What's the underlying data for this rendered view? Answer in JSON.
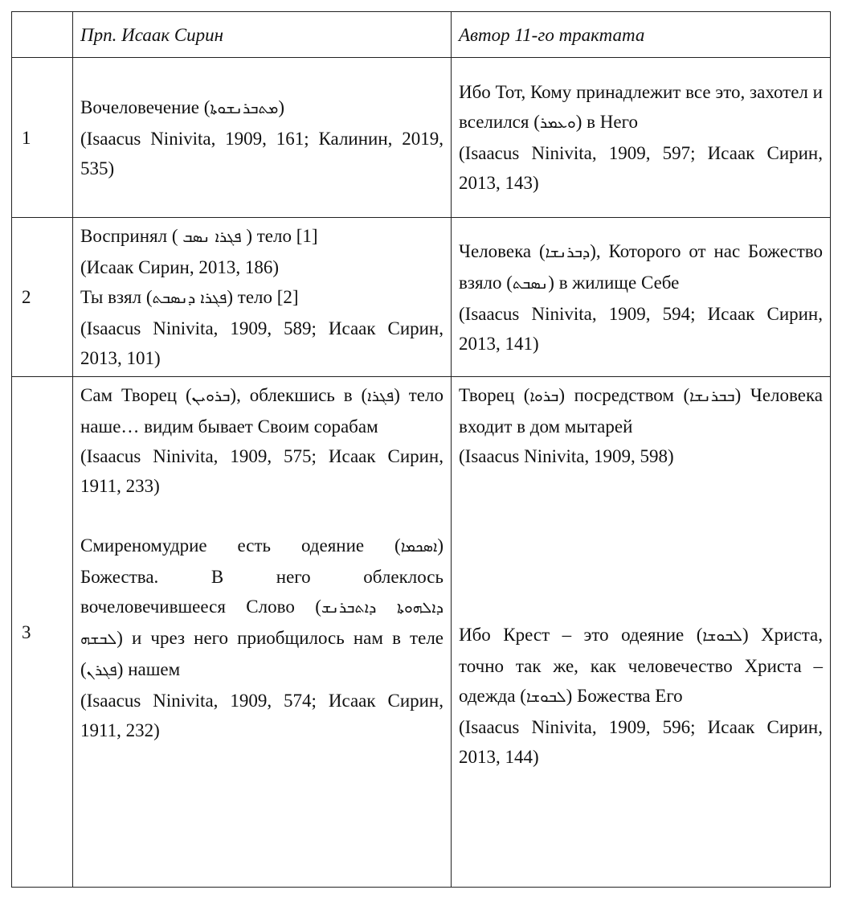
{
  "header": {
    "num": "",
    "col1": "Прп. Исаак Сирин",
    "col2": "Автор 11-го трактата"
  },
  "rows": [
    {
      "num": "1",
      "left": [
        {
          "pre": "Вочеловечение (",
          "syr": "ܡܬܒܪܢܫܘܬܐ",
          "post": ")"
        },
        {
          "text": "(Isaacus Ninivita, 1909, 161; Калинин, 2019, 535)"
        }
      ],
      "right": [
        {
          "pre": "Ибо Тот, Кому принадлежит все это, захотел и вселился (",
          "syr": "ܘܥܡܪ",
          "post": ") в Него"
        },
        {
          "text": "(Isaacus Ninivita, 1909, 597; Исаак Сирин, 2013, 143)"
        }
      ]
    },
    {
      "num": "2",
      "left": [
        {
          "pre": "Воспринял ( ",
          "syr": "ܦܓܪܐ ܢܣܒ",
          "post": " ) тело [1]"
        },
        {
          "text": "(Исаак Сирин, 2013, 186)"
        },
        {
          "pre": "Ты взял (",
          "syr": "ܦܓܪܐ ܕܢܣܒܬ",
          "post": ") тело [2]"
        },
        {
          "text": "(Isaacus Ninivita, 1909, 589; Исаак Сирин, 2013, 101)"
        }
      ],
      "right": [
        {
          "pre": "Человека (",
          "syr": "ܕܒܪܢܫܐ",
          "mid": "), Которого от нас Божество взяло (",
          "syr2": "ܢܣܒܬ",
          "post": ") в жилище Себе"
        },
        {
          "text": "(Isaacus Ninivita, 1909, 594; Исаак Сирин, 2013, 141)"
        }
      ]
    },
    {
      "num": "3",
      "left": [
        {
          "pre": "Сам Творец (",
          "syr": "ܒܪܘܝܢ",
          "mid": "), облекшись в (",
          "syr2": "ܦܓܪܐ",
          "post": ") тело наше… видим бывает Своим сорабам"
        },
        {
          "text": "(Isaacus Ninivita, 1909, 575; Исаак Сирин, 1911, 233)"
        },
        {
          "pre": "Смиреномудрие есть одеяние (",
          "syr": "ܐܣܟܡܐ",
          "mid": ") Божества. В него облеклось вочеловечившееся Слово (",
          "syr2": "ܕܐܠܗܘܬܐ ܕܐܬܒܪܢܫ ܠܒܫܗ",
          "mid2": ") и чрез него приобщилось нам в теле (",
          "syr3": "ܦܓܪܢ",
          "post": ") нашем"
        },
        {
          "text": "(Isaacus Ninivita, 1909, 574; Исаак Сирин, 1911, 232)"
        }
      ],
      "right": [
        {
          "pre": "Творец (",
          "syr": "ܒܪܘܐ",
          "mid": ") посредством (",
          "syr2": "ܒܒܪܢܫܐ",
          "post": ") Человека входит в дом мытарей"
        },
        {
          "text": "(Isaacus Ninivita, 1909, 598)"
        },
        {
          "pre": "Ибо Крест – это одеяние (",
          "syr": "ܠܒܘܫܐ",
          "mid": ") Христа, точно так же, как человечество Христа – одежда (",
          "syr2": "ܠܒܘܫܐ",
          "post": ") Божества Его"
        },
        {
          "text": "(Isaacus Ninivita, 1909, 596; Исаак Сирин, 2013, 144)"
        }
      ]
    }
  ]
}
